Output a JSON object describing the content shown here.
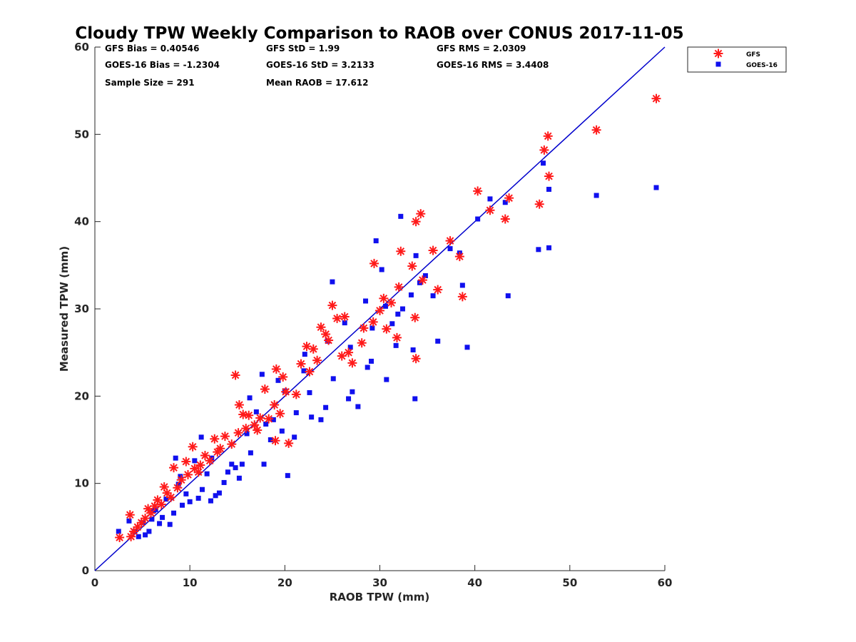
{
  "stats": {
    "gfs_bias": "GFS Bias = 0.40546",
    "gfs_std": "GFS StD = 1.99",
    "gfs_rms": "GFS RMS = 2.0309",
    "goes_bias": "GOES-16 Bias = -1.2304",
    "goes_std": "GOES-16 StD = 3.2133",
    "goes_rms": "GOES-16 RMS = 3.4408",
    "sample_size": "Sample Size = 291",
    "mean_raob": "Mean RAOB = 17.612"
  },
  "chart_data": {
    "type": "scatter",
    "title": "Cloudy TPW Weekly Comparison to RAOB over CONUS 2017-11-05",
    "xlabel": "RAOB TPW (mm)",
    "ylabel": "Measured TPW (mm)",
    "xlim": [
      0,
      60
    ],
    "ylim": [
      0,
      60
    ],
    "x_ticks": [
      "0",
      "10",
      "20",
      "30",
      "40",
      "50",
      "60"
    ],
    "y_ticks": [
      "0",
      "10",
      "20",
      "30",
      "40",
      "50",
      "60"
    ],
    "grid": false,
    "legend_position": "top-right, outside plot",
    "reference_line": {
      "from": [
        0,
        0
      ],
      "to": [
        60,
        60
      ],
      "color": "#0000cc"
    },
    "series": [
      {
        "name": "GFS",
        "marker": "asterisk",
        "color": "#ff1a1a",
        "points": [
          [
            59.1,
            54.1
          ],
          [
            52.8,
            50.5
          ],
          [
            47.7,
            49.8
          ],
          [
            47.3,
            48.2
          ],
          [
            47.8,
            45.2
          ],
          [
            46.8,
            42.0
          ],
          [
            43.6,
            42.7
          ],
          [
            43.2,
            40.3
          ],
          [
            41.6,
            41.3
          ],
          [
            40.3,
            43.5
          ],
          [
            38.4,
            36.0
          ],
          [
            38.7,
            31.4
          ],
          [
            37.4,
            37.8
          ],
          [
            36.1,
            32.2
          ],
          [
            35.6,
            36.7
          ],
          [
            34.3,
            40.9
          ],
          [
            33.8,
            40.0
          ],
          [
            33.8,
            24.3
          ],
          [
            33.7,
            29.0
          ],
          [
            32.2,
            36.6
          ],
          [
            33.4,
            34.9
          ],
          [
            31.8,
            26.7
          ],
          [
            30.4,
            31.2
          ],
          [
            29.4,
            35.2
          ],
          [
            30.7,
            27.7
          ],
          [
            29.3,
            28.5
          ],
          [
            28.1,
            26.1
          ],
          [
            27.1,
            23.8
          ],
          [
            26.7,
            25.0
          ],
          [
            26.3,
            29.1
          ],
          [
            25.5,
            28.9
          ],
          [
            25.0,
            30.4
          ],
          [
            24.6,
            26.4
          ],
          [
            24.3,
            27.1
          ],
          [
            23.8,
            27.9
          ],
          [
            23.0,
            25.4
          ],
          [
            22.3,
            25.7
          ],
          [
            21.7,
            23.7
          ],
          [
            22.6,
            22.8
          ],
          [
            20.4,
            14.6
          ],
          [
            21.2,
            20.2
          ],
          [
            19.8,
            22.2
          ],
          [
            19.1,
            23.1
          ],
          [
            19.0,
            14.9
          ],
          [
            18.3,
            17.4
          ],
          [
            18.9,
            19.0
          ],
          [
            17.9,
            20.8
          ],
          [
            17.4,
            17.5
          ],
          [
            16.8,
            16.7
          ],
          [
            15.9,
            16.3
          ],
          [
            15.6,
            17.9
          ],
          [
            15.2,
            19.0
          ],
          [
            15.1,
            15.8
          ],
          [
            14.8,
            22.4
          ],
          [
            14.4,
            14.5
          ],
          [
            13.7,
            15.4
          ],
          [
            13.2,
            14.0
          ],
          [
            12.6,
            15.1
          ],
          [
            12.1,
            12.6
          ],
          [
            11.6,
            13.2
          ],
          [
            11.1,
            12.1
          ],
          [
            10.5,
            11.7
          ],
          [
            10.3,
            14.2
          ],
          [
            9.8,
            11.0
          ],
          [
            9.6,
            12.5
          ],
          [
            9.1,
            10.4
          ],
          [
            8.7,
            9.5
          ],
          [
            8.3,
            11.8
          ],
          [
            8.0,
            8.4
          ],
          [
            7.6,
            8.9
          ],
          [
            7.3,
            9.6
          ],
          [
            7.0,
            7.6
          ],
          [
            6.6,
            8.1
          ],
          [
            6.3,
            7.4
          ],
          [
            5.9,
            6.6
          ],
          [
            5.6,
            7.1
          ],
          [
            5.3,
            6.0
          ],
          [
            4.9,
            5.5
          ],
          [
            4.5,
            5.0
          ],
          [
            4.1,
            4.5
          ],
          [
            3.7,
            6.4
          ],
          [
            3.8,
            3.9
          ],
          [
            2.6,
            3.8
          ],
          [
            10.9,
            11.3
          ],
          [
            12.9,
            13.6
          ],
          [
            16.2,
            17.8
          ],
          [
            17.1,
            16.1
          ],
          [
            19.5,
            18.0
          ],
          [
            20.1,
            20.5
          ],
          [
            23.4,
            24.1
          ],
          [
            26.0,
            24.6
          ],
          [
            28.3,
            27.8
          ],
          [
            30.0,
            29.8
          ],
          [
            31.2,
            30.7
          ],
          [
            32.0,
            32.5
          ],
          [
            34.5,
            33.3
          ]
        ]
      },
      {
        "name": "GOES-16",
        "marker": "square",
        "color": "#1010ee",
        "points": [
          [
            59.1,
            43.9
          ],
          [
            52.8,
            43.0
          ],
          [
            47.2,
            46.7
          ],
          [
            47.8,
            43.7
          ],
          [
            47.8,
            37.0
          ],
          [
            46.7,
            36.8
          ],
          [
            43.5,
            31.5
          ],
          [
            43.2,
            42.2
          ],
          [
            41.6,
            42.6
          ],
          [
            40.3,
            40.3
          ],
          [
            39.2,
            25.6
          ],
          [
            38.7,
            32.7
          ],
          [
            38.4,
            36.4
          ],
          [
            37.4,
            36.9
          ],
          [
            36.1,
            26.3
          ],
          [
            35.6,
            31.5
          ],
          [
            34.8,
            33.8
          ],
          [
            33.8,
            36.1
          ],
          [
            33.7,
            19.7
          ],
          [
            33.5,
            25.3
          ],
          [
            33.3,
            31.6
          ],
          [
            32.2,
            40.6
          ],
          [
            31.9,
            29.4
          ],
          [
            31.7,
            25.8
          ],
          [
            30.7,
            21.9
          ],
          [
            30.2,
            34.5
          ],
          [
            29.6,
            37.8
          ],
          [
            29.2,
            27.8
          ],
          [
            29.1,
            24.0
          ],
          [
            28.7,
            23.3
          ],
          [
            27.7,
            18.8
          ],
          [
            27.1,
            20.5
          ],
          [
            26.7,
            19.7
          ],
          [
            26.3,
            28.4
          ],
          [
            25.0,
            33.1
          ],
          [
            25.1,
            22.0
          ],
          [
            24.3,
            18.7
          ],
          [
            23.8,
            17.3
          ],
          [
            22.6,
            20.4
          ],
          [
            22.8,
            17.6
          ],
          [
            22.0,
            22.9
          ],
          [
            21.2,
            18.1
          ],
          [
            21.0,
            15.3
          ],
          [
            20.3,
            10.9
          ],
          [
            20.0,
            20.6
          ],
          [
            19.7,
            16.0
          ],
          [
            19.3,
            21.8
          ],
          [
            18.5,
            15.0
          ],
          [
            18.0,
            16.8
          ],
          [
            17.8,
            12.2
          ],
          [
            17.6,
            22.5
          ],
          [
            17.0,
            18.2
          ],
          [
            16.4,
            13.5
          ],
          [
            16.0,
            15.7
          ],
          [
            15.5,
            12.2
          ],
          [
            15.2,
            10.6
          ],
          [
            14.8,
            11.8
          ],
          [
            14.4,
            12.2
          ],
          [
            14.0,
            11.3
          ],
          [
            13.6,
            10.1
          ],
          [
            13.1,
            8.9
          ],
          [
            12.7,
            8.6
          ],
          [
            12.2,
            8.0
          ],
          [
            11.8,
            11.1
          ],
          [
            11.3,
            9.3
          ],
          [
            10.9,
            8.3
          ],
          [
            10.5,
            12.6
          ],
          [
            10.0,
            7.9
          ],
          [
            9.6,
            8.8
          ],
          [
            9.2,
            7.5
          ],
          [
            8.8,
            9.9
          ],
          [
            8.5,
            12.9
          ],
          [
            8.3,
            6.6
          ],
          [
            7.9,
            5.3
          ],
          [
            7.5,
            8.2
          ],
          [
            7.1,
            6.1
          ],
          [
            6.8,
            5.4
          ],
          [
            6.4,
            7.0
          ],
          [
            6.0,
            5.9
          ],
          [
            5.7,
            4.5
          ],
          [
            5.3,
            4.1
          ],
          [
            5.0,
            5.5
          ],
          [
            4.6,
            3.9
          ],
          [
            4.2,
            4.5
          ],
          [
            3.6,
            5.7
          ],
          [
            2.5,
            4.5
          ],
          [
            11.2,
            15.3
          ],
          [
            12.3,
            12.9
          ],
          [
            16.3,
            19.8
          ],
          [
            18.8,
            17.3
          ],
          [
            22.1,
            24.8
          ],
          [
            24.5,
            26.3
          ],
          [
            26.9,
            25.6
          ],
          [
            28.5,
            30.9
          ],
          [
            30.6,
            30.3
          ],
          [
            31.3,
            28.3
          ],
          [
            32.4,
            30.0
          ],
          [
            34.2,
            33.0
          ],
          [
            9.0,
            10.8
          ],
          [
            6.2,
            6.9
          ]
        ]
      }
    ]
  }
}
